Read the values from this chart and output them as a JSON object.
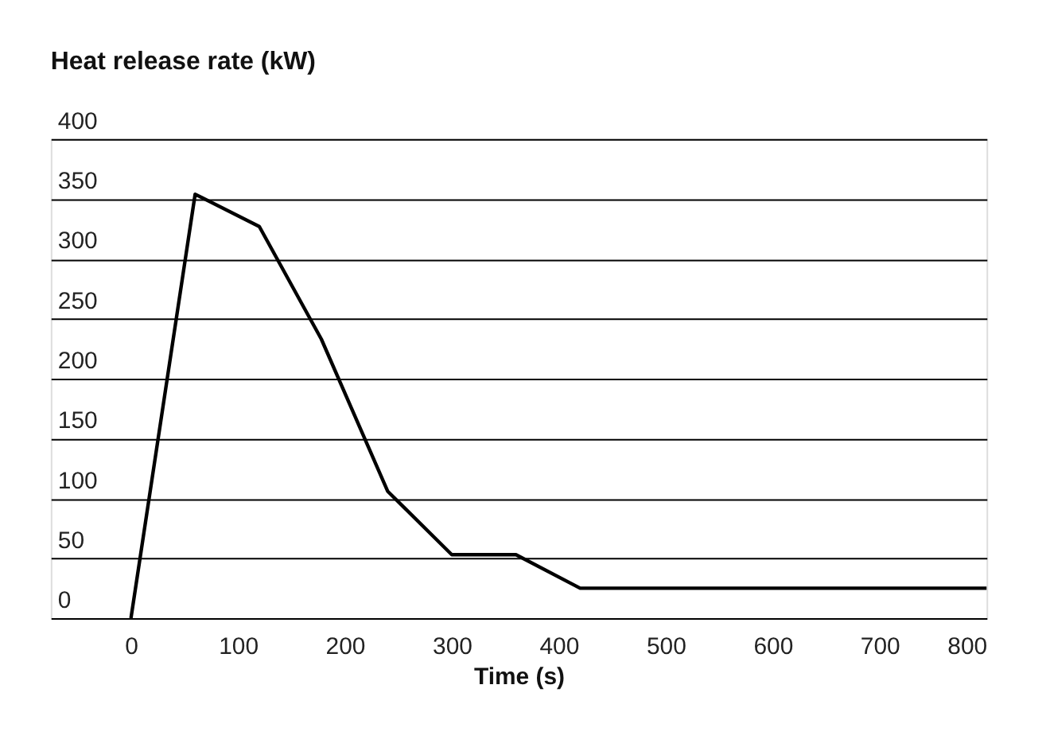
{
  "chart_data": {
    "type": "line",
    "title": "Heat release rate (kW)",
    "xlabel": "Time (s)",
    "x": [
      0,
      60,
      120,
      178,
      240,
      300,
      360,
      420,
      800
    ],
    "series": [
      {
        "color": "#000000",
        "values": [
          0,
          354,
          327,
          233,
          106,
          53,
          53,
          25,
          25
        ]
      }
    ],
    "xlim": [
      -75,
      800
    ],
    "xticks": [
      0,
      100,
      200,
      300,
      400,
      500,
      600,
      700,
      800
    ],
    "ylim": [
      0,
      400
    ],
    "yticks": [
      0,
      50,
      100,
      150,
      200,
      250,
      300,
      350,
      400
    ],
    "grid": "y",
    "marker": "none",
    "line_style": "solid"
  }
}
